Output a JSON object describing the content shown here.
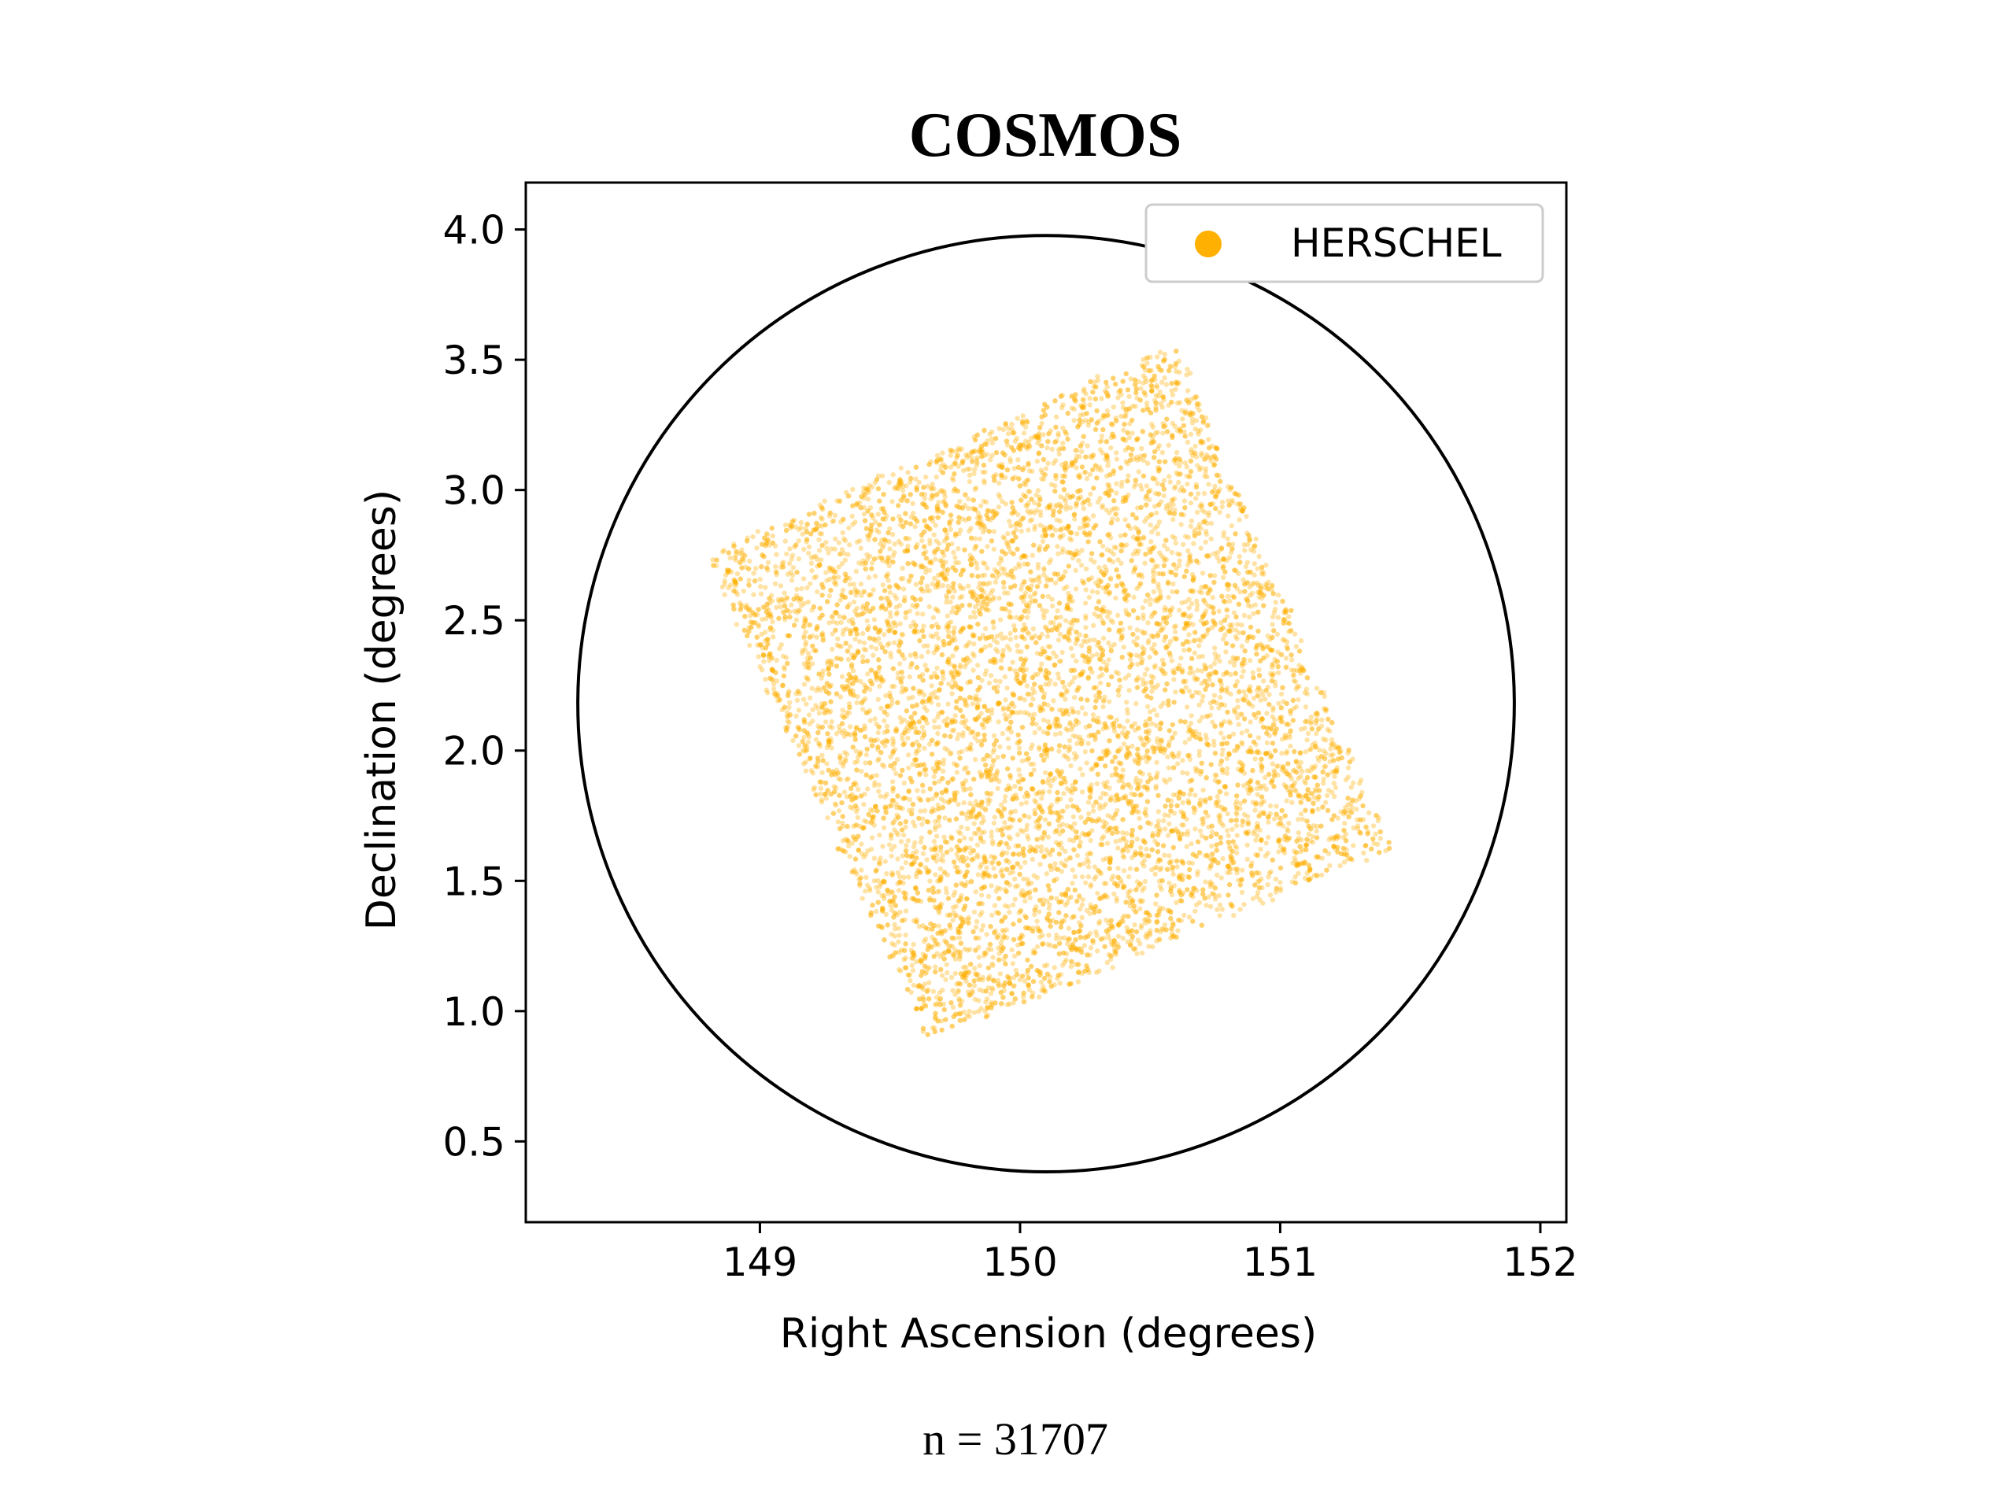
{
  "chart_data": {
    "type": "scatter",
    "title": "COSMOS",
    "xlabel": "Right Ascension (degrees)",
    "ylabel": "Declination (degrees)",
    "xlim": [
      148.1,
      152.1
    ],
    "ylim": [
      0.19,
      4.18
    ],
    "xticks": [
      149,
      150,
      151,
      152
    ],
    "xtick_labels": [
      "149",
      "150",
      "151",
      "152"
    ],
    "yticks": [
      0.5,
      1.0,
      1.5,
      2.0,
      2.5,
      3.0,
      3.5,
      4.0
    ],
    "ytick_labels": [
      "0.5",
      "1.0",
      "1.5",
      "2.0",
      "2.5",
      "3.0",
      "3.5",
      "4.0"
    ],
    "grid": false,
    "legend_placement": "top-right",
    "series": [
      {
        "name": "HERSCHEL",
        "color": "#FFB000",
        "count": 31707,
        "region_corners": [
          [
            148.8,
            2.75
          ],
          [
            150.6,
            3.56
          ],
          [
            151.42,
            1.62
          ],
          [
            149.65,
            0.88
          ]
        ]
      }
    ],
    "circle": {
      "center": [
        150.1,
        2.18
      ],
      "radius_deg": 1.8,
      "color": "#000000"
    },
    "caption": "n = 31707"
  }
}
